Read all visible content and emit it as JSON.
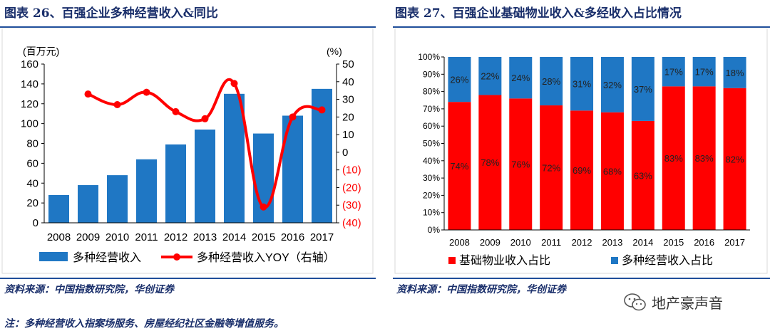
{
  "left": {
    "title": "图表 26、百强企业多种经营收入&同比",
    "source": "资料来源：中国指数研究院，华创证券",
    "note": "注：多种经营收入指案场服务、房屋经纪社区金融等增值服务。"
  },
  "right": {
    "title": "图表 27、百强企业基础物业收入&多经收入占比情况",
    "source": "资料来源：中国指数研究院，华创证券"
  },
  "watermark": "地产豪声音",
  "colors": {
    "bar_blue": "#1f77c4",
    "line_red": "#ff0000",
    "stack_red": "#ff0000",
    "stack_blue": "#1f77c4",
    "title": "#1a2f6b"
  },
  "chart_data": [
    {
      "type": "bar",
      "title": "百强企业多种经营收入&同比",
      "left_unit": "(百万元)",
      "right_unit": "(%)",
      "categories": [
        "2008",
        "2009",
        "2010",
        "2011",
        "2012",
        "2013",
        "2014",
        "2015",
        "2016",
        "2017"
      ],
      "series": [
        {
          "name": "多种经营收入",
          "type": "bar",
          "axis": "left",
          "values": [
            28,
            38,
            48,
            64,
            79,
            94,
            130,
            90,
            108,
            135
          ]
        },
        {
          "name": "多种经营收入YOY（右轴）",
          "type": "line",
          "axis": "right",
          "values": [
            null,
            33,
            27,
            34,
            23,
            19,
            39,
            -31,
            20,
            24
          ]
        }
      ],
      "ylim_left": [
        0,
        160
      ],
      "left_ticks": [
        "0",
        "20",
        "40",
        "60",
        "80",
        "100",
        "120",
        "140",
        "160"
      ],
      "ylim_right": [
        -40,
        50
      ],
      "right_ticks": [
        "(40)",
        "(30)",
        "(20)",
        "(10)",
        "0",
        "10",
        "20",
        "30",
        "40",
        "50"
      ]
    },
    {
      "type": "stacked_bar",
      "title": "百强企业基础物业收入&多经收入占比情况",
      "categories": [
        "2008",
        "2009",
        "2010",
        "2011",
        "2012",
        "2013",
        "2014",
        "2015",
        "2016",
        "2017"
      ],
      "series": [
        {
          "name": "基础物业收入占比",
          "values": [
            74,
            78,
            76,
            72,
            69,
            68,
            63,
            83,
            83,
            82
          ],
          "labels": [
            "74%",
            "78%",
            "76%",
            "72%",
            "69%",
            "68%",
            "63%",
            "83%",
            "83%",
            "82%"
          ]
        },
        {
          "name": "多种经营收入占比",
          "values": [
            26,
            22,
            24,
            28,
            31,
            32,
            37,
            17,
            17,
            18
          ],
          "labels": [
            "26%",
            "22%",
            "24%",
            "28%",
            "31%",
            "32%",
            "37%",
            "17%",
            "17%",
            "18%"
          ]
        }
      ],
      "ylim": [
        0,
        100
      ],
      "y_ticks": [
        "0%",
        "10%",
        "20%",
        "30%",
        "40%",
        "50%",
        "60%",
        "70%",
        "80%",
        "90%",
        "100%"
      ]
    }
  ]
}
